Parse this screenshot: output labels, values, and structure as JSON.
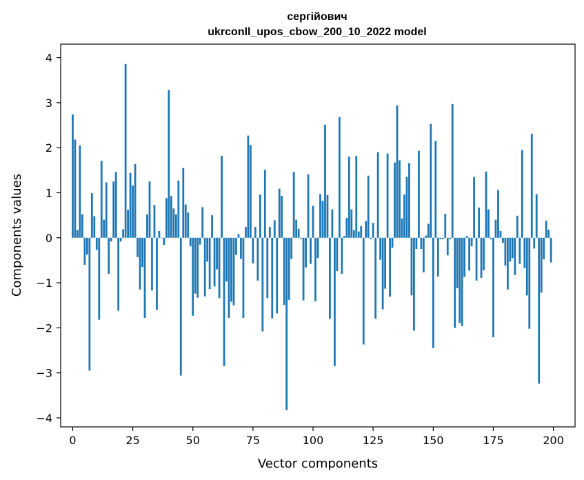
{
  "chart_data": {
    "type": "bar",
    "title": "сергійович",
    "subtitle": "ukrconll_upos_cbow_200_10_2022 model",
    "xlabel": "Vector components",
    "ylabel": "Components values",
    "xlim": [
      -5,
      209
    ],
    "ylim": [
      -4.2,
      4.3
    ],
    "xticks": [
      0,
      25,
      50,
      75,
      100,
      125,
      150,
      175,
      200
    ],
    "yticks": [
      -4,
      -3,
      -2,
      -1,
      0,
      1,
      2,
      3,
      4
    ],
    "xtick_labels": [
      "0",
      "25",
      "50",
      "75",
      "100",
      "125",
      "150",
      "175",
      "200"
    ],
    "ytick_labels": [
      "−4",
      "−3",
      "−2",
      "−1",
      "0",
      "1",
      "2",
      "3",
      "4"
    ],
    "bar_color": "#1f77b4",
    "grid": false,
    "legend": "none",
    "values": [
      2.74,
      2.18,
      0.17,
      2.05,
      0.52,
      -0.6,
      -0.37,
      -2.95,
      0.99,
      0.48,
      -0.27,
      -1.82,
      1.71,
      0.4,
      1.23,
      -0.8,
      -0.08,
      1.25,
      1.46,
      -1.62,
      -0.08,
      0.19,
      3.86,
      0.62,
      1.44,
      1.16,
      1.64,
      -0.43,
      -1.15,
      -0.65,
      -1.78,
      0.52,
      1.25,
      -1.17,
      0.73,
      -1.6,
      0.15,
      -0.01,
      -0.16,
      0.88,
      3.28,
      0.93,
      0.65,
      0.52,
      1.27,
      -3.06,
      1.55,
      0.74,
      0.56,
      -0.19,
      -1.73,
      -1.24,
      -1.33,
      -0.15,
      0.68,
      -1.3,
      -0.53,
      -1.14,
      0.5,
      -1.08,
      -0.7,
      -1.34,
      1.82,
      -2.85,
      -0.97,
      -1.78,
      -1.42,
      -1.5,
      -0.38,
      0.08,
      -0.47,
      -1.78,
      0.24,
      2.27,
      2.06,
      -0.57,
      0.24,
      -0.95,
      0.96,
      -2.08,
      1.51,
      -1.34,
      0.24,
      -1.79,
      0.39,
      -1.68,
      1.09,
      0.93,
      -1.49,
      -3.83,
      -1.38,
      -0.47,
      1.46,
      0.4,
      0.2,
      -0.02,
      -1.39,
      -0.66,
      1.41,
      -0.58,
      0.71,
      -1.41,
      -0.45,
      0.97,
      0.82,
      2.51,
      0.95,
      -1.8,
      0.63,
      -2.85,
      -0.74,
      2.68,
      -0.8,
      0.04,
      0.44,
      1.8,
      0.63,
      0.17,
      1.82,
      0.14,
      0.26,
      -2.37,
      0.37,
      1.38,
      -0.03,
      0.33,
      -1.8,
      1.9,
      -0.49,
      -1.59,
      -1.13,
      1.87,
      -1.31,
      -0.22,
      1.67,
      2.94,
      1.72,
      0.43,
      0.96,
      1.35,
      1.66,
      -1.28,
      -2.06,
      -0.25,
      1.93,
      -0.25,
      -0.77,
      0.05,
      0.31,
      2.53,
      -2.45,
      2.15,
      -0.86,
      -0.03,
      -0.03,
      0.53,
      -0.39,
      -0.03,
      2.97,
      -2.0,
      -1.12,
      -1.89,
      -1.96,
      -0.87,
      0.04,
      -0.73,
      -0.19,
      1.35,
      -0.95,
      0.67,
      -0.89,
      -0.72,
      1.47,
      0.63,
      -0.03,
      -2.21,
      0.4,
      1.06,
      0.15,
      -0.11,
      -0.62,
      -1.15,
      -0.53,
      -0.45,
      -0.83,
      0.49,
      -0.58,
      1.95,
      -0.67,
      -1.28,
      -2.02,
      2.31,
      -0.24,
      0.97,
      -3.24,
      -1.22,
      -0.48,
      0.38,
      0.18,
      -0.55
    ]
  }
}
